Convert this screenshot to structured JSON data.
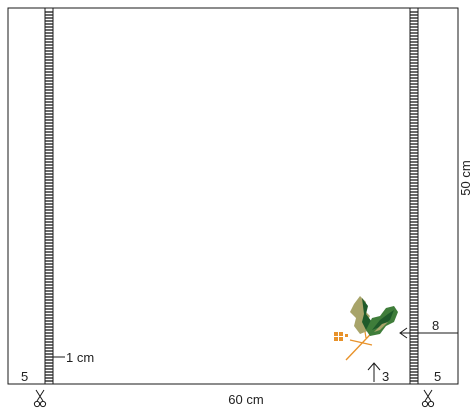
{
  "labels": {
    "width": "60 cm",
    "height": "50 cm",
    "edge_left": "5",
    "edge_right": "5",
    "one_cm": "1 cm",
    "marker_8": "8",
    "marker_3": "3"
  },
  "colors": {
    "line": "#1a1a1a",
    "stitch": "#1a1a1a",
    "leaf_dark": "#1f5a2a",
    "leaf_mid": "#3f7d3a",
    "leaf_light": "#a8a46a",
    "stem": "#e8922a",
    "berry": "#e8922a"
  },
  "icons": {
    "scissors": "scissors-icon",
    "holly": "holly-leaf-icon",
    "arrow": "arrow-icon"
  }
}
